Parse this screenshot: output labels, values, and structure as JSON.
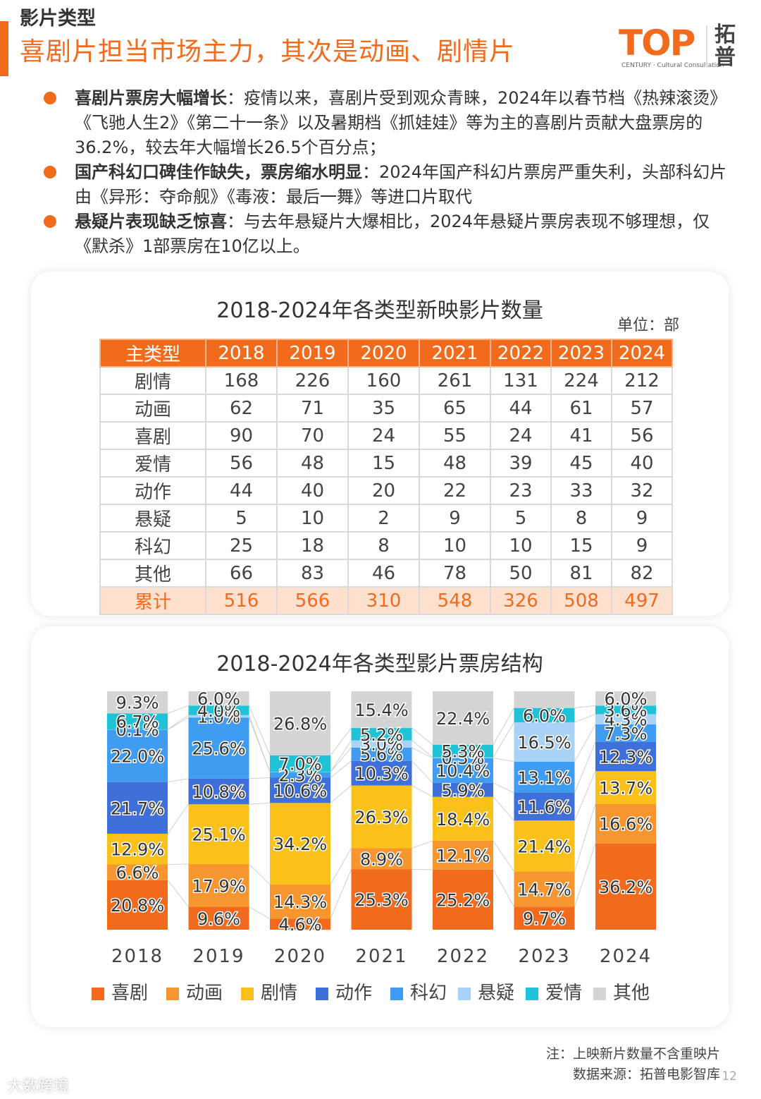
{
  "header": {
    "section_label": "影片类型",
    "title": "喜剧片担当市场主力，其次是动画、剧情片",
    "logo_top": "TOP",
    "logo_sub": "CENTURY · Cultural Consultation",
    "logo_cn": "拓普",
    "accent_color": "#f26b1d"
  },
  "bullets": [
    {
      "lead": "喜剧片票房大幅增长",
      "text": "：疫情以来，喜剧片受到观众青睐，2024年以春节档《热辣滚烫》《飞驰人生2》《第二十一条》以及暑期档《抓娃娃》等为主的喜剧片贡献大盘票房的36.2%，较去年大幅增长26.5个百分点；"
    },
    {
      "lead": "国产科幻口碑佳作缺失，票房缩水明显",
      "text": "：2024年国产科幻片票房严重失利，头部科幻片由《异形：夺命舰》《毒液：最后一舞》等进口片取代"
    },
    {
      "lead": "悬疑片表现缺乏惊喜",
      "text": "：与去年悬疑片大爆相比，2024年悬疑片票房表现不够理想，仅《默杀》1部票房在10亿以上。"
    }
  ],
  "table": {
    "title": "2018-2024年各类型新映影片数量",
    "unit": "单位：部",
    "headers": [
      "主类型",
      "2018",
      "2019",
      "2020",
      "2021",
      "2022",
      "2023",
      "2024"
    ],
    "rows": [
      [
        "剧情",
        "168",
        "226",
        "160",
        "261",
        "131",
        "224",
        "212"
      ],
      [
        "动画",
        "62",
        "71",
        "35",
        "65",
        "44",
        "61",
        "57"
      ],
      [
        "喜剧",
        "90",
        "70",
        "24",
        "55",
        "24",
        "41",
        "56"
      ],
      [
        "爱情",
        "56",
        "48",
        "15",
        "48",
        "39",
        "45",
        "40"
      ],
      [
        "动作",
        "44",
        "40",
        "20",
        "22",
        "23",
        "33",
        "32"
      ],
      [
        "悬疑",
        "5",
        "10",
        "2",
        "9",
        "5",
        "8",
        "9"
      ],
      [
        "科幻",
        "25",
        "18",
        "8",
        "10",
        "10",
        "15",
        "9"
      ],
      [
        "其他",
        "66",
        "83",
        "46",
        "78",
        "50",
        "81",
        "82"
      ]
    ],
    "total": [
      "累计",
      "516",
      "566",
      "310",
      "548",
      "326",
      "508",
      "497"
    ]
  },
  "chart_data": [
    {
      "type": "table",
      "title": "2018-2024年各类型新映影片数量",
      "columns": [
        "主类型",
        "2018",
        "2019",
        "2020",
        "2021",
        "2022",
        "2023",
        "2024"
      ],
      "rows": [
        [
          "剧情",
          168,
          226,
          160,
          261,
          131,
          224,
          212
        ],
        [
          "动画",
          62,
          71,
          35,
          65,
          44,
          61,
          57
        ],
        [
          "喜剧",
          90,
          70,
          24,
          55,
          24,
          41,
          56
        ],
        [
          "爱情",
          56,
          48,
          15,
          48,
          39,
          45,
          40
        ],
        [
          "动作",
          44,
          40,
          20,
          22,
          23,
          33,
          32
        ],
        [
          "悬疑",
          5,
          10,
          2,
          9,
          5,
          8,
          9
        ],
        [
          "科幻",
          25,
          18,
          8,
          10,
          10,
          15,
          9
        ],
        [
          "其他",
          66,
          83,
          46,
          78,
          50,
          81,
          82
        ],
        [
          "累计",
          516,
          566,
          310,
          548,
          326,
          508,
          497
        ]
      ]
    },
    {
      "type": "bar",
      "stacked": true,
      "percent": true,
      "title": "2018-2024年各类型影片票房结构",
      "categories": [
        "2018",
        "2019",
        "2020",
        "2021",
        "2022",
        "2023",
        "2024"
      ],
      "series": [
        {
          "name": "喜剧",
          "color": "#f26b1d",
          "values": [
            20.8,
            9.6,
            4.6,
            25.3,
            25.2,
            9.7,
            36.2
          ],
          "labels": [
            "20.8%",
            "9.6%",
            "4.6%",
            "25.3%",
            "25.2%",
            "9.7%",
            "36.2%"
          ]
        },
        {
          "name": "动画",
          "color": "#f7962e",
          "values": [
            6.6,
            17.9,
            14.3,
            8.9,
            12.1,
            14.7,
            16.6
          ],
          "labels": [
            "6.6%",
            "17.9%",
            "14.3%",
            "8.9%",
            "12.1%",
            "14.7%",
            "16.6%"
          ]
        },
        {
          "name": "剧情",
          "color": "#fbc11b",
          "values": [
            12.9,
            25.1,
            34.2,
            26.3,
            18.4,
            21.4,
            13.7
          ],
          "labels": [
            "12.9%",
            "25.1%",
            "34.2%",
            "26.3%",
            "18.4%",
            "21.4%",
            "13.7%"
          ]
        },
        {
          "name": "动作",
          "color": "#3f6fd8",
          "values": [
            21.7,
            10.8,
            10.6,
            10.3,
            5.9,
            11.6,
            12.3
          ],
          "labels": [
            "21.7%",
            "10.8%",
            "10.6%",
            "10.3%",
            "5.9%",
            "11.6%",
            "12.3%"
          ]
        },
        {
          "name": "科幻",
          "color": "#3f9cf0",
          "values": [
            22.0,
            25.6,
            2.3,
            5.6,
            10.4,
            13.1,
            7.3
          ],
          "labels": [
            "22.0%",
            "25.6%",
            "2.3%",
            "5.6%",
            "10.4%",
            "13.1%",
            "7.3%"
          ]
        },
        {
          "name": "悬疑",
          "color": "#a8d3f7",
          "values": [
            0.1,
            1.0,
            0.1,
            3.0,
            0.3,
            16.5,
            4.3
          ],
          "labels": [
            "0.1%",
            "1.0%",
            "",
            "3.0%",
            "0.3%",
            "16.5%",
            "4.3%"
          ]
        },
        {
          "name": "爱情",
          "color": "#1fc2d6",
          "values": [
            6.7,
            4.0,
            7.0,
            5.2,
            5.3,
            6.0,
            3.6
          ],
          "labels": [
            "6.7%",
            "4.0%",
            "7.0%",
            "5.2%",
            "5.3%",
            "6.0%",
            "3.6%"
          ]
        },
        {
          "name": "其他",
          "color": "#d4d4d4",
          "values": [
            9.3,
            6.0,
            26.8,
            15.4,
            22.4,
            7.0,
            6.0
          ],
          "labels": [
            "9.3%",
            "6.0%",
            "26.8%",
            "15.4%",
            "22.4%",
            "",
            "6.0%"
          ]
        }
      ],
      "legend_position": "bottom",
      "grid": false
    }
  ],
  "footer": {
    "note": "注：上映新片数量不含重映片",
    "source": "数据来源：拓普电影智库",
    "page": "12",
    "watermark": "大数跨境"
  }
}
